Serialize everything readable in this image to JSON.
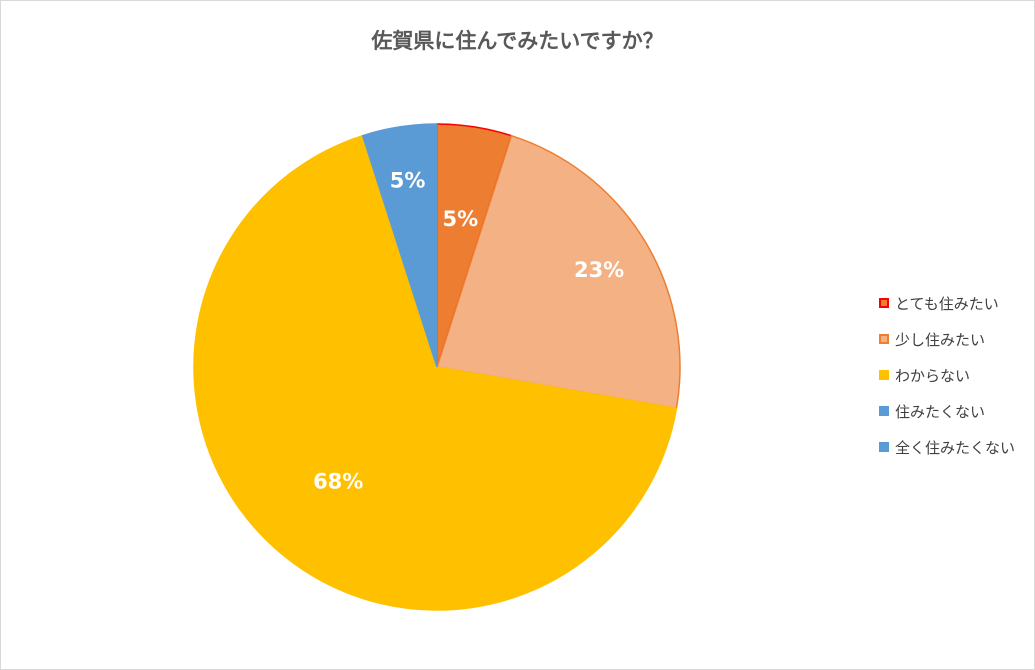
{
  "chart_data": {
    "type": "pie",
    "title": "佐賀県に住んでみたいですか？",
    "categories": [
      "とても住みたい",
      "少し住みたい",
      "わからない",
      "住みたくない",
      "全く住みたくない"
    ],
    "values": [
      5,
      23,
      68,
      5,
      0
    ],
    "data_labels": [
      "5%",
      "23%",
      "68%",
      "5%",
      ""
    ],
    "colors": [
      "#ed7d31",
      "#f4b183",
      "#ffc000",
      "#5b9bd5",
      "#5b9bd5"
    ],
    "outlines": [
      "#ff0000",
      "#ed7d31",
      "#ffc000",
      "#5b9bd5",
      "#5b9bd5"
    ],
    "legend_position": "right"
  }
}
